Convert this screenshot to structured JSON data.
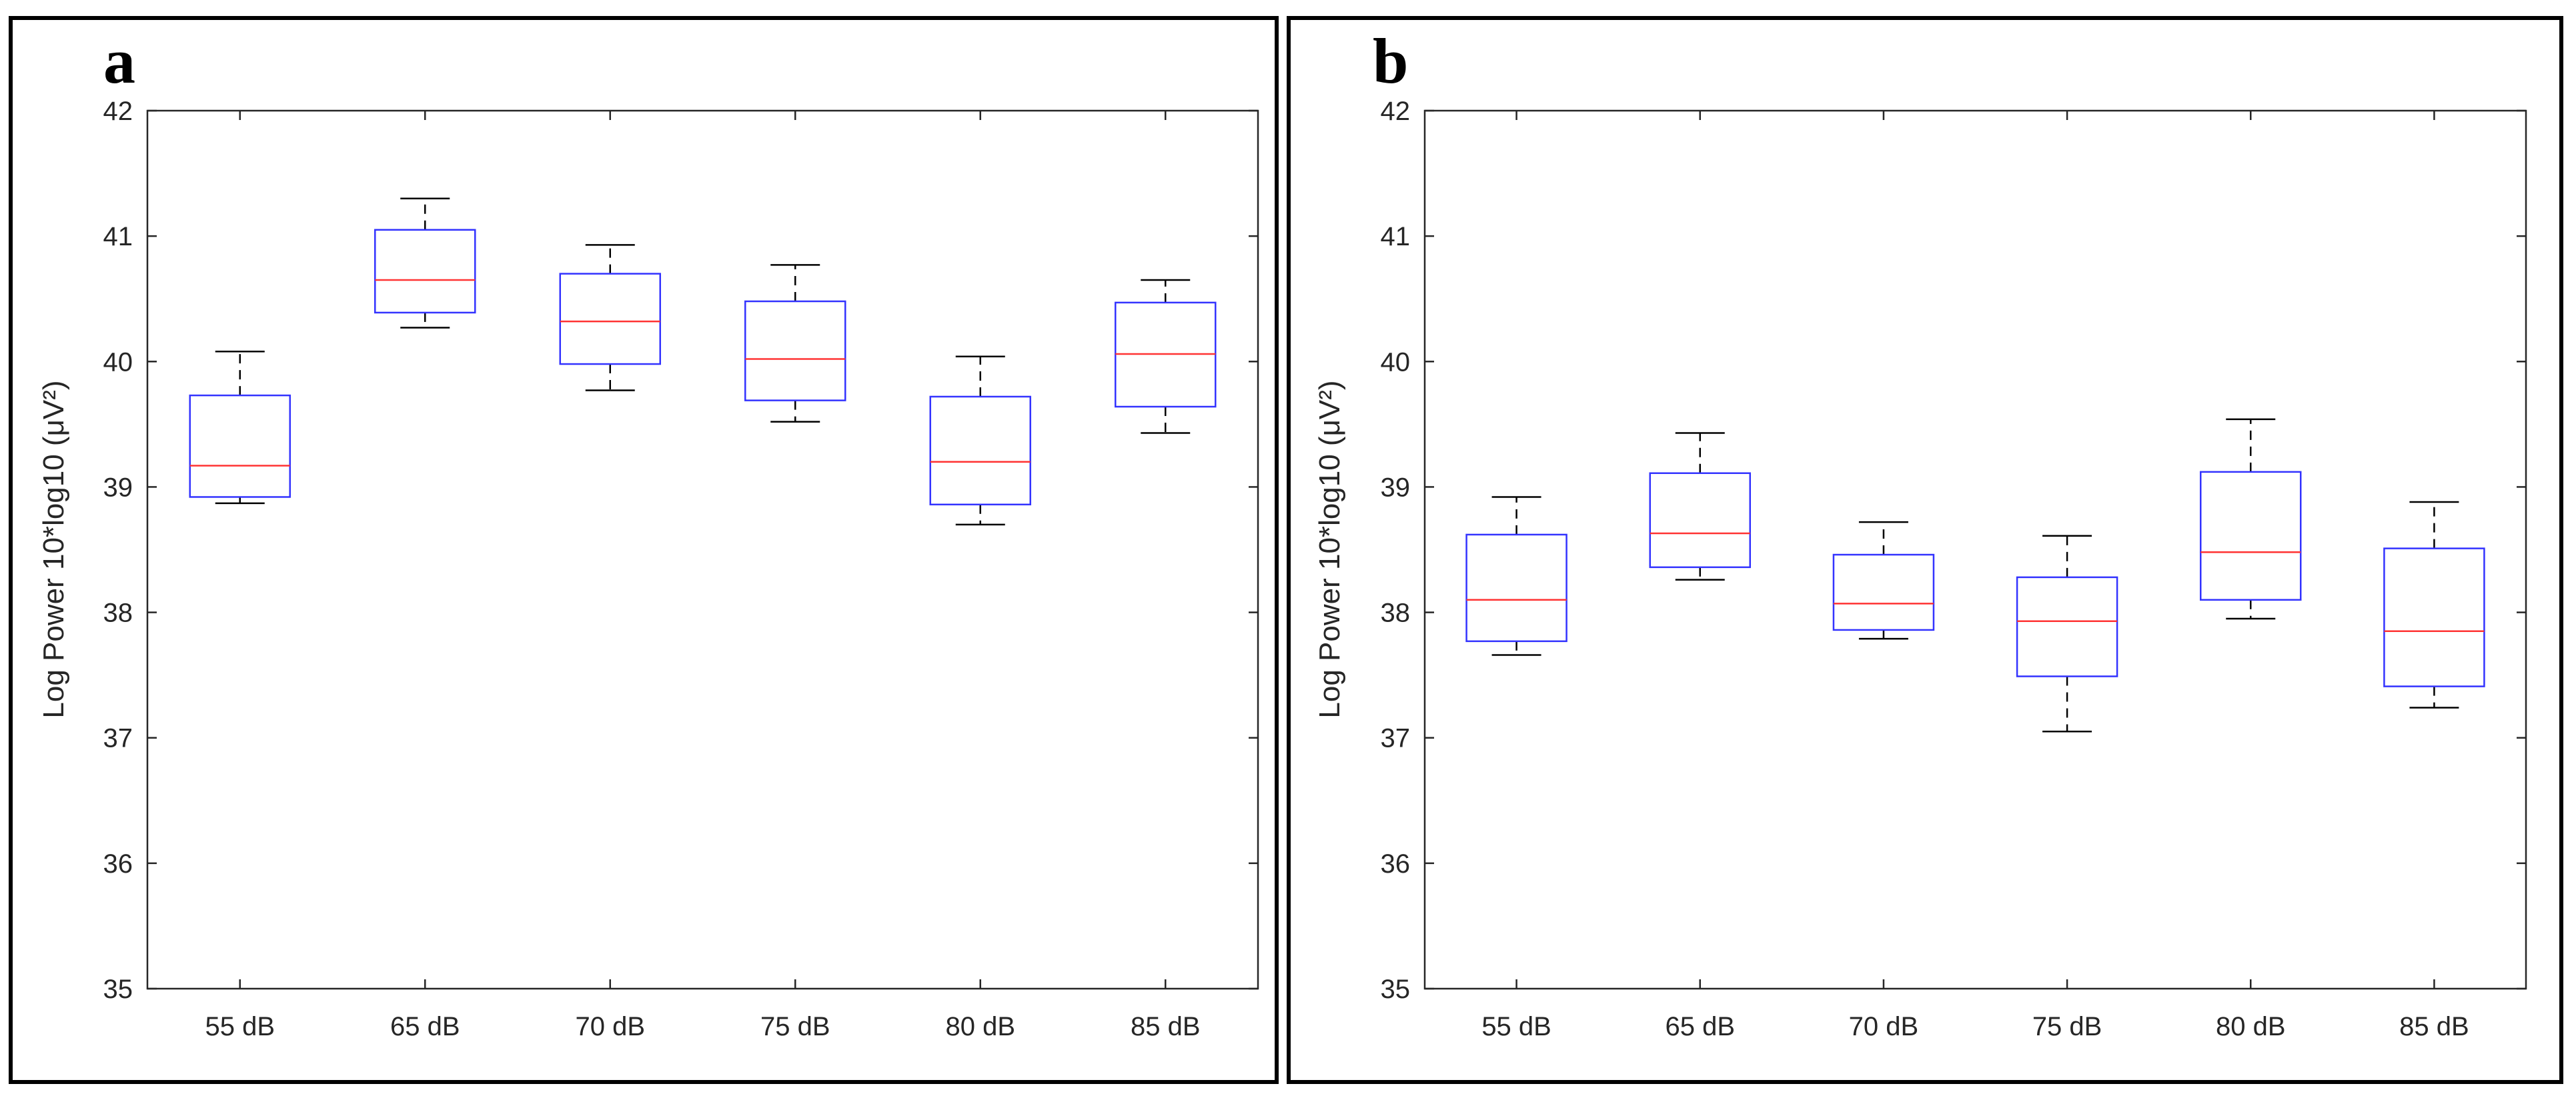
{
  "colors": {
    "box": "#3333ff",
    "median": "#ff3333",
    "whisker": "#000000",
    "axes": "#262626",
    "frame": "#000000"
  },
  "chart_data": [
    {
      "type": "box",
      "panel_label": "a",
      "title": "",
      "xlabel": "",
      "ylabel": "Log Power 10*log10 (μV²)",
      "ylim": [
        35,
        42
      ],
      "yticks": [
        "35",
        "36",
        "37",
        "38",
        "39",
        "40",
        "41",
        "42"
      ],
      "categories": [
        "55 dB",
        "65 dB",
        "70 dB",
        "75 dB",
        "80 dB",
        "85 dB"
      ],
      "boxes": [
        {
          "min": 38.87,
          "q1": 38.92,
          "median": 39.17,
          "q3": 39.73,
          "max": 40.08
        },
        {
          "min": 40.27,
          "q1": 40.39,
          "median": 40.65,
          "q3": 41.05,
          "max": 41.3
        },
        {
          "min": 39.77,
          "q1": 39.98,
          "median": 40.32,
          "q3": 40.7,
          "max": 40.93
        },
        {
          "min": 39.52,
          "q1": 39.69,
          "median": 40.02,
          "q3": 40.48,
          "max": 40.77
        },
        {
          "min": 38.7,
          "q1": 38.86,
          "median": 39.2,
          "q3": 39.72,
          "max": 40.04
        },
        {
          "min": 39.43,
          "q1": 39.64,
          "median": 40.06,
          "q3": 40.47,
          "max": 40.65
        }
      ]
    },
    {
      "type": "box",
      "panel_label": "b",
      "title": "",
      "xlabel": "",
      "ylabel": "Log Power 10*log10 (μV²)",
      "ylim": [
        35,
        42
      ],
      "yticks": [
        "35",
        "36",
        "37",
        "38",
        "39",
        "40",
        "41",
        "42"
      ],
      "categories": [
        "55 dB",
        "65 dB",
        "70 dB",
        "75 dB",
        "80 dB",
        "85 dB"
      ],
      "boxes": [
        {
          "min": 37.66,
          "q1": 37.77,
          "median": 38.1,
          "q3": 38.62,
          "max": 38.92
        },
        {
          "min": 38.26,
          "q1": 38.36,
          "median": 38.63,
          "q3": 39.11,
          "max": 39.43
        },
        {
          "min": 37.79,
          "q1": 37.86,
          "median": 38.07,
          "q3": 38.46,
          "max": 38.72
        },
        {
          "min": 37.05,
          "q1": 37.49,
          "median": 37.93,
          "q3": 38.28,
          "max": 38.61
        },
        {
          "min": 37.95,
          "q1": 38.1,
          "median": 38.48,
          "q3": 39.12,
          "max": 39.54
        },
        {
          "min": 37.24,
          "q1": 37.41,
          "median": 37.85,
          "q3": 38.51,
          "max": 38.88
        }
      ]
    }
  ]
}
